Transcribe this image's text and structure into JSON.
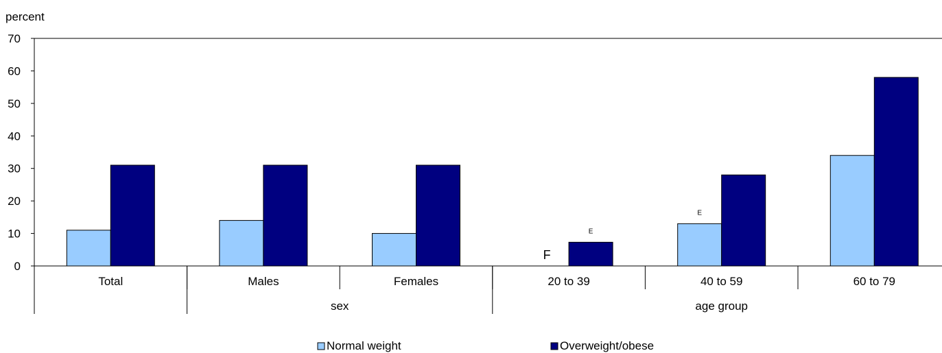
{
  "chart_data": {
    "type": "bar",
    "ylabel": "percent",
    "ylim": [
      0,
      70
    ],
    "yticks": [
      0,
      10,
      20,
      30,
      40,
      50,
      60,
      70
    ],
    "categories": [
      "Total",
      "Males",
      "Females",
      "20 to 39",
      "40 to 59",
      "60 to 79"
    ],
    "groups": [
      {
        "label": "",
        "categories": [
          "Total"
        ]
      },
      {
        "label": "sex",
        "categories": [
          "Males",
          "Females"
        ]
      },
      {
        "label": "age group",
        "categories": [
          "20 to 39",
          "40 to 59",
          "60 to 79"
        ]
      }
    ],
    "series": [
      {
        "name": "Normal weight",
        "color": "#99ccff",
        "values": [
          11,
          14,
          10,
          null,
          13,
          34
        ],
        "flags": [
          "",
          "",
          "",
          "F",
          "E",
          ""
        ]
      },
      {
        "name": "Overweight/obese",
        "color": "#000080",
        "values": [
          31,
          31,
          31,
          7.3,
          28,
          58
        ],
        "flags": [
          "",
          "",
          "",
          "E",
          "",
          ""
        ]
      }
    ],
    "grid": false,
    "legend_position": "bottom"
  }
}
